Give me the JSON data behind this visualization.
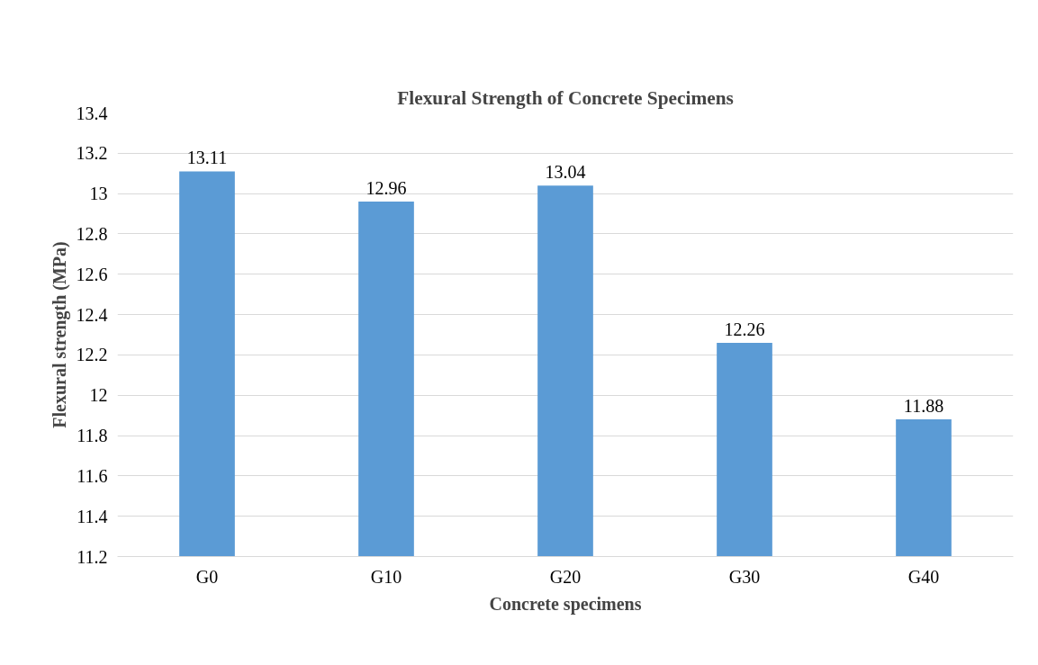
{
  "chart_data": {
    "type": "bar",
    "title": "Flexural Strength of Concrete Specimens",
    "xlabel": "Concrete specimens",
    "ylabel": "Flexural strength (MPa)",
    "categories": [
      "G0",
      "G10",
      "G20",
      "G30",
      "G40"
    ],
    "values": [
      13.11,
      12.96,
      13.04,
      12.26,
      11.88
    ],
    "color": "#5b9bd5",
    "ylim": [
      11.2,
      13.4
    ],
    "yticks": [
      11.2,
      11.4,
      11.6,
      11.8,
      12,
      12.2,
      12.4,
      12.6,
      12.8,
      13,
      13.2,
      13.4
    ],
    "grid": "y",
    "data_labels": true
  }
}
